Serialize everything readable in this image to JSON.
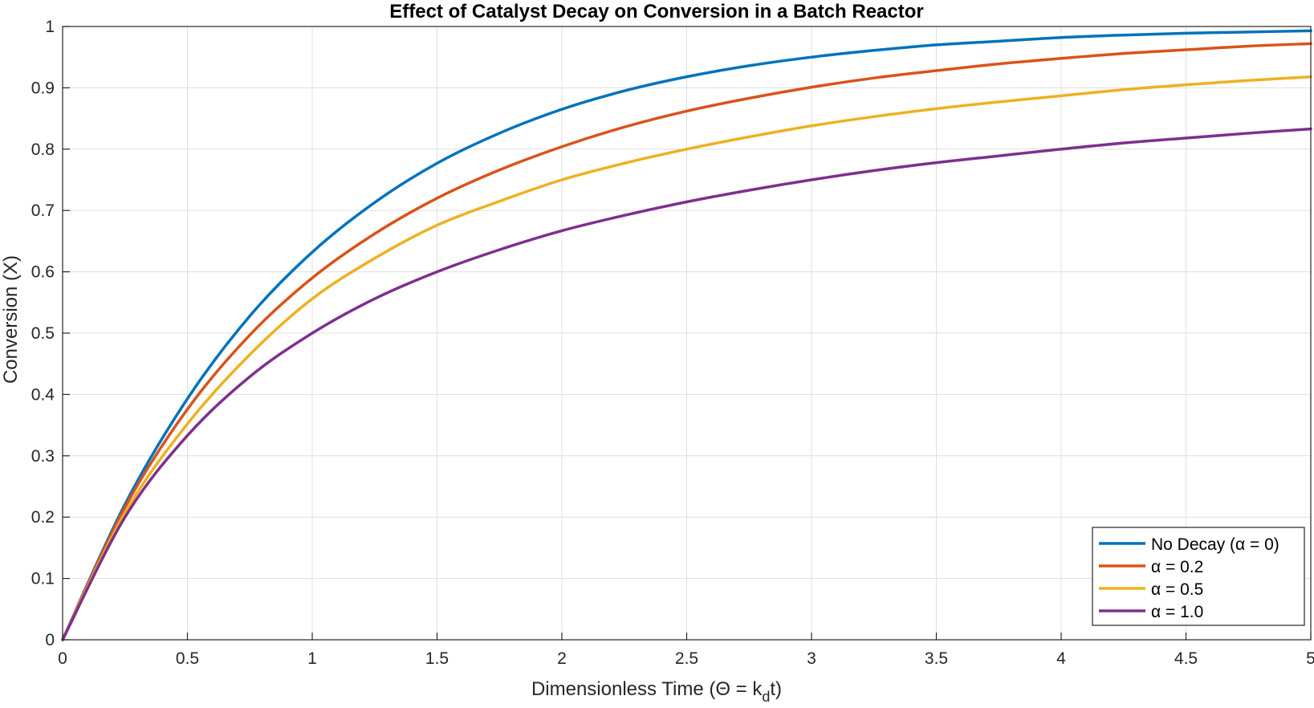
{
  "chart_data": {
    "type": "line",
    "title": "Effect of Catalyst Decay on Conversion in a Batch Reactor",
    "xlabel": {
      "main": "Dimensionless Time (Θ = k",
      "sub": "d",
      "tail": "t)"
    },
    "ylabel": "Conversion (X)",
    "xlim": [
      0,
      5
    ],
    "ylim": [
      0,
      1
    ],
    "x_ticks": [
      "0",
      "0.5",
      "1",
      "1.5",
      "2",
      "2.5",
      "3",
      "3.5",
      "4",
      "4.5",
      "5"
    ],
    "y_ticks": [
      "0",
      "0.1",
      "0.2",
      "0.3",
      "0.4",
      "0.5",
      "0.6",
      "0.7",
      "0.8",
      "0.9",
      "1"
    ],
    "grid": true,
    "legend_position": "bottom-right",
    "x": [
      0,
      0.25,
      0.5,
      0.75,
      1,
      1.25,
      1.5,
      1.75,
      2,
      2.25,
      2.5,
      2.75,
      3,
      3.25,
      3.5,
      3.75,
      4,
      4.25,
      4.5,
      4.75,
      5
    ],
    "series": [
      {
        "name": "No Decay (α = 0)",
        "color": "#0072BD",
        "values": [
          0,
          0.221,
          0.393,
          0.528,
          0.632,
          0.713,
          0.777,
          0.826,
          0.865,
          0.895,
          0.918,
          0.936,
          0.95,
          0.961,
          0.97,
          0.976,
          0.982,
          0.986,
          0.989,
          0.991,
          0.993
        ]
      },
      {
        "name": "α = 0.2",
        "color": "#D95319",
        "values": [
          0,
          0.216,
          0.376,
          0.497,
          0.59,
          0.662,
          0.72,
          0.766,
          0.804,
          0.836,
          0.862,
          0.883,
          0.901,
          0.916,
          0.928,
          0.939,
          0.948,
          0.956,
          0.962,
          0.968,
          0.972
        ]
      },
      {
        "name": "α = 0.5",
        "color": "#EDB120",
        "values": [
          0,
          0.207,
          0.352,
          0.465,
          0.556,
          0.622,
          0.676,
          0.715,
          0.75,
          0.777,
          0.8,
          0.82,
          0.838,
          0.853,
          0.866,
          0.877,
          0.887,
          0.897,
          0.905,
          0.912,
          0.918
        ]
      },
      {
        "name": "α = 1.0",
        "color": "#7E2F8E",
        "values": [
          0,
          0.2,
          0.333,
          0.429,
          0.5,
          0.556,
          0.6,
          0.636,
          0.667,
          0.692,
          0.714,
          0.733,
          0.75,
          0.765,
          0.778,
          0.789,
          0.8,
          0.81,
          0.818,
          0.826,
          0.833
        ]
      }
    ]
  }
}
